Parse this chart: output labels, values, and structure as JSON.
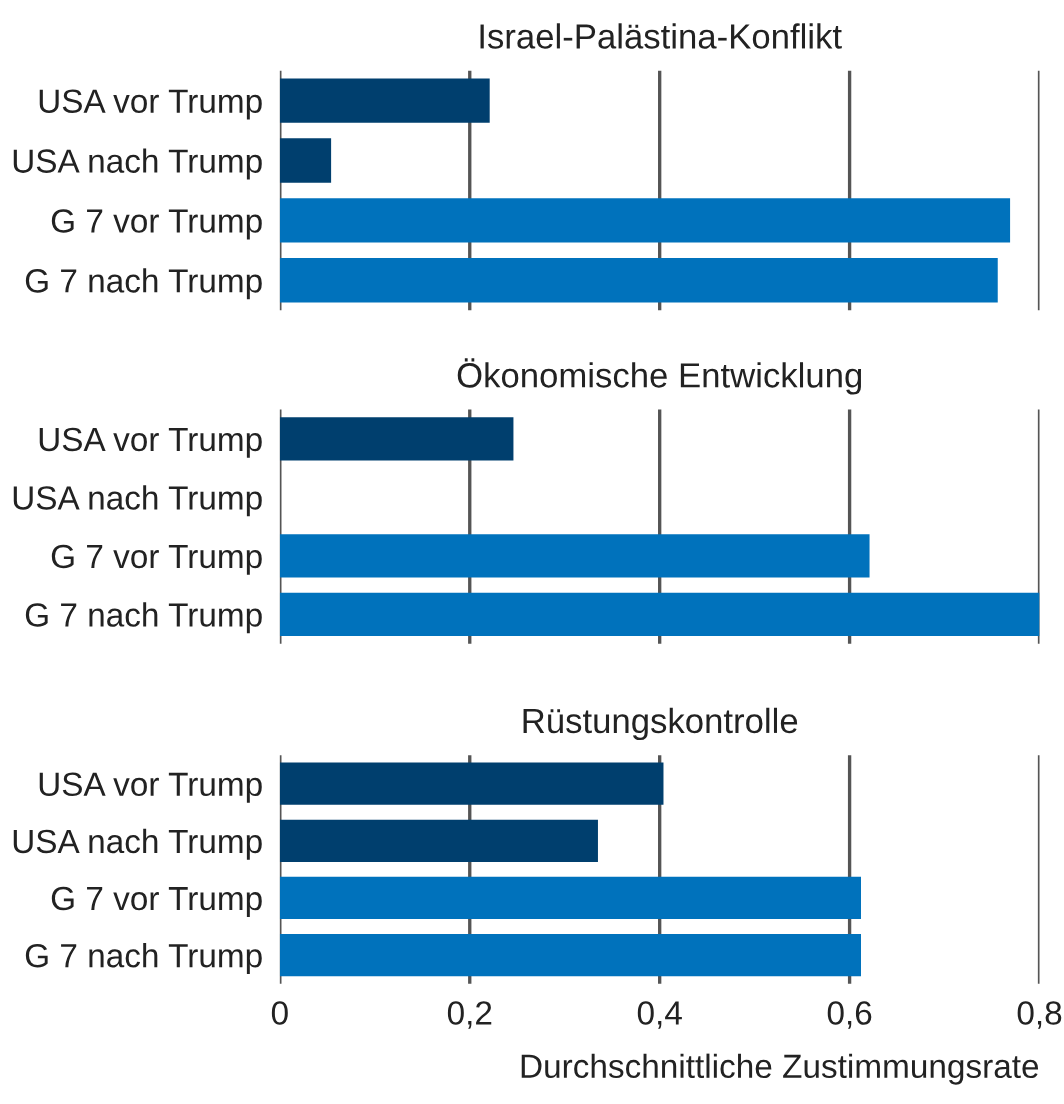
{
  "chart_data": [
    {
      "type": "bar",
      "orientation": "horizontal",
      "title": "Israel-Palästina-Konflikt",
      "categories": [
        "USA vor Trump",
        "USA nach Trump",
        "G 7 vor Trump",
        "G 7 nach Trump"
      ],
      "values": [
        0.221,
        0.054,
        0.769,
        0.756
      ],
      "colors": [
        "#003f6e",
        "#003f6e",
        "#0072bc",
        "#0072bc"
      ],
      "xlim": [
        0,
        0.8
      ],
      "xticks": [
        0,
        0.2,
        0.4,
        0.6,
        0.8
      ],
      "grid": "x",
      "tick_labels": "y"
    },
    {
      "type": "bar",
      "orientation": "horizontal",
      "title": "Ökonomische Entwicklung",
      "categories": [
        "USA vor Trump",
        "USA nach Trump",
        "G 7 vor Trump",
        "G 7 nach Trump"
      ],
      "values": [
        0.246,
        null,
        0.621,
        0.8
      ],
      "colors": [
        "#003f6e",
        "#003f6e",
        "#0072bc",
        "#0072bc"
      ],
      "xlim": [
        0,
        0.8
      ],
      "xticks": [
        0,
        0.2,
        0.4,
        0.6,
        0.8
      ],
      "grid": "x",
      "tick_labels": "y"
    },
    {
      "type": "bar",
      "orientation": "horizontal",
      "title": "Rüstungskontrolle",
      "xlabel": "Durchschnittliche Zustimmungsrate",
      "categories": [
        "USA vor Trump",
        "USA nach Trump",
        "G 7 vor Trump",
        "G 7 nach Trump"
      ],
      "values": [
        0.404,
        0.335,
        0.612,
        0.612
      ],
      "colors": [
        "#003f6e",
        "#003f6e",
        "#0072bc",
        "#0072bc"
      ],
      "xlim": [
        0,
        0.8
      ],
      "xticks": [
        0,
        {
          "value": 0.2,
          "label": "0,2"
        },
        {
          "value": 0.4,
          "label": "0,4"
        },
        {
          "value": 0.6,
          "label": "0,6"
        },
        {
          "value": 0.8,
          "label": "0,8"
        }
      ],
      "grid": "x"
    }
  ]
}
